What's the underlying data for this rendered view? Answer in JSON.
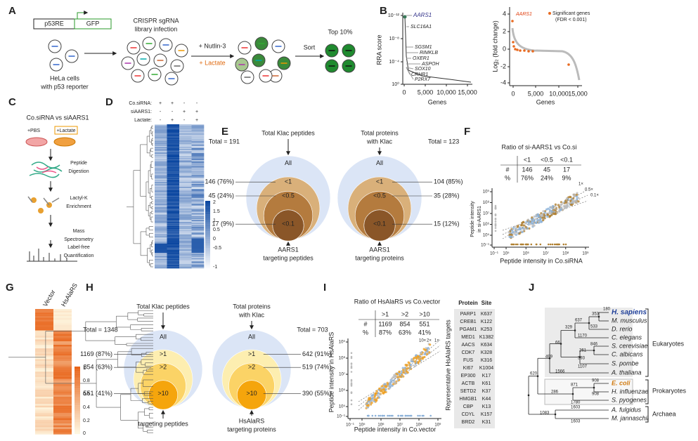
{
  "A": {
    "label": "A",
    "p53re": "p53RE",
    "gfp": "GFP",
    "library": [
      "CRISPR sgRNA",
      "library infection"
    ],
    "cells": [
      "HeLa cells",
      "with p53 reporter"
    ],
    "nutlin": "+ Nutlin-3",
    "lactate": "+ Lactate",
    "sort": "Sort",
    "top": "Top 10%"
  },
  "B": {
    "label": "B",
    "left": {
      "ylabel": "RRA score",
      "yticks": [
        "10⁻¹²",
        "10⁻⁸",
        "10⁻⁴",
        "10⁰"
      ],
      "xticks": [
        "0",
        "5,000",
        "10,000",
        "15,000"
      ],
      "xlabel": "Genes",
      "genes": [
        "AARS1",
        "SLC16A1",
        "SGSM1",
        "RIMKLB",
        "OXER1",
        "ASPOH",
        "SOX10",
        "CRHR1",
        "P2RX7"
      ]
    },
    "right": {
      "ylabel": "Log₂ (fold change)",
      "yticks": [
        "4",
        "2",
        "0",
        "-2",
        "-4"
      ],
      "xticks": [
        "0",
        "5,000",
        "10,000",
        "15,000"
      ],
      "xlabel": "Genes",
      "highlight": "AARS1",
      "legend": [
        "Significant genes",
        "(FDR < 0.001)"
      ]
    }
  },
  "C": {
    "label": "C",
    "title": "Co.siRNA vs siAARS1",
    "pbs": "+PBS",
    "lactate": "+Lactate",
    "steps": [
      [
        "Peptide",
        "Digestion"
      ],
      [
        "Lactyl-K",
        "Enrichment"
      ],
      [
        "Mass",
        "Spectrometry"
      ],
      [
        "Label-free",
        "Quantification"
      ]
    ]
  },
  "D": {
    "label": "D",
    "rows": [
      "Co.siRNA:",
      "siAARS1:",
      "Lactate:"
    ],
    "signs": [
      [
        "+",
        "+",
        "-",
        "-"
      ],
      [
        "-",
        "-",
        "+",
        "+"
      ],
      [
        "-",
        "+",
        "-",
        "+"
      ]
    ],
    "colorbar": [
      "2",
      "1.5",
      "1",
      "0.5",
      "0",
      "-0.5",
      "-1"
    ]
  },
  "E": {
    "label": "E",
    "left": {
      "title": [
        "Total Klac peptides"
      ],
      "total": "Total = 191",
      "rings": [
        "All",
        "<1",
        "<0.5",
        "<0.1"
      ],
      "counts": [
        "146 (76%)",
        "45 (24%)",
        "17 (9%)"
      ],
      "bottom": [
        "AARS1",
        "targeting peptides"
      ]
    },
    "right": {
      "title": [
        "Total proteins",
        "with Klac"
      ],
      "total": "Total = 123",
      "rings": [
        "All",
        "<1",
        "<0.5",
        "<0.1"
      ],
      "counts": [
        "104 (85%)",
        "35 (28%)",
        "15 (12%)"
      ],
      "bottom": [
        "AARS1",
        "targeting proteins"
      ]
    }
  },
  "F": {
    "label": "F",
    "title": "Ratio of si-AARS1 vs Co.si",
    "table": {
      "header": [
        "<1",
        "<0.5",
        "<0.1"
      ],
      "rows": [
        [
          "#",
          "146",
          "45",
          "17"
        ],
        [
          "%",
          "76%",
          "24%",
          "9%"
        ]
      ]
    },
    "lines": [
      "1×",
      "0.5×",
      "0.1×"
    ],
    "ylabel": [
      "Peptide intensity",
      "in si-AARS1"
    ],
    "xlabel": "Peptide intensity in Co.siRNA",
    "yticks": [
      "10⁹",
      "10⁸",
      "10⁷",
      "10⁶",
      "10⁵",
      "10⁻¹"
    ],
    "xticks": [
      "10⁻¹",
      "10⁵",
      "10⁶",
      "10⁷",
      "10⁸",
      "10⁹"
    ]
  },
  "G": {
    "label": "G",
    "columns": [
      "Vector",
      "HsAlaRS"
    ],
    "colorbar": [
      "1",
      "0.8",
      "0.6",
      "0.4",
      "0.2",
      "0"
    ]
  },
  "H": {
    "label": "H",
    "left": {
      "title": [
        "Total Klac peptides"
      ],
      "total": "Total = 1348",
      "rings": [
        "All",
        ">1",
        ">2",
        ">10"
      ],
      "counts": [
        "1169 (87%)",
        "854 (63%)",
        "551 (41%)"
      ],
      "bottom": [
        "targeting peptides"
      ]
    },
    "right": {
      "title": [
        "Total proteins",
        "with Klac"
      ],
      "total": "Total = 703",
      "rings": [
        "All",
        ">1",
        ">2",
        ">10"
      ],
      "counts": [
        "642 (91%)",
        "519 (74%)",
        "390 (55%)"
      ],
      "bottom": [
        "HsAlaRS",
        "targeting proteins"
      ]
    }
  },
  "I": {
    "label": "I",
    "title": "Ratio of HsAlaRS vs Co.vector",
    "table": {
      "header": [
        ">1",
        ">2",
        ">10"
      ],
      "rows": [
        [
          "#",
          "1169",
          "854",
          "551"
        ],
        [
          "%",
          "87%",
          "63%",
          "41%"
        ]
      ]
    },
    "lines": [
      "10×",
      "2×",
      "1×"
    ],
    "ylabel": "Peptide intensity in HsAlaRS",
    "xlabel": "Peptide intensity in Co.vector",
    "yticks": [
      "10⁹",
      "10⁸",
      "10⁷",
      "10⁶",
      "10⁵",
      "10⁻¹"
    ],
    "xticks": [
      "10⁻¹",
      "10⁵",
      "10⁶",
      "10⁷",
      "10⁸",
      "10⁹"
    ],
    "targets": {
      "title": "Representative HsAlaRS targets",
      "header": [
        "Protein",
        "Site"
      ],
      "rows": [
        [
          "PARP1",
          "K637"
        ],
        [
          "CREB1",
          "K122"
        ],
        [
          "PGAM1",
          "K253"
        ],
        [
          "MED1",
          "K1382"
        ],
        [
          "AACS",
          "K634"
        ],
        [
          "CDK7",
          "K328"
        ],
        [
          "FUS",
          "K316"
        ],
        [
          "KI67",
          "K1004"
        ],
        [
          "EP300",
          "K17"
        ],
        [
          "ACTB",
          "K61"
        ],
        [
          "SETD2",
          "K37"
        ],
        [
          "HMGB1",
          "K44"
        ],
        [
          "CBP",
          "K13"
        ],
        [
          "CDYL",
          "K157"
        ],
        [
          "BRD2",
          "K31"
        ]
      ]
    }
  },
  "J": {
    "label": "J",
    "species": [
      "H. sapiens",
      "M. musculus",
      "D. rerio",
      "C. elegans",
      "S. cerevisiae",
      "C. albicans",
      "S. pombe",
      "A. thaliana",
      "E. coli",
      "H. influenzae",
      "S. pyogenes",
      "A. fulgidus",
      "M. jannaschii"
    ],
    "groups": [
      "Eukaryotes",
      "Prokaryotes",
      "Archaea"
    ],
    "nodes": [
      180,
      353,
      637,
      533,
      329,
      1170,
      846,
      261,
      66,
      393,
      1107,
      499,
      1566,
      620,
      908,
      871,
      908,
      286,
      1780,
      1603,
      1083,
      1603
    ]
  }
}
